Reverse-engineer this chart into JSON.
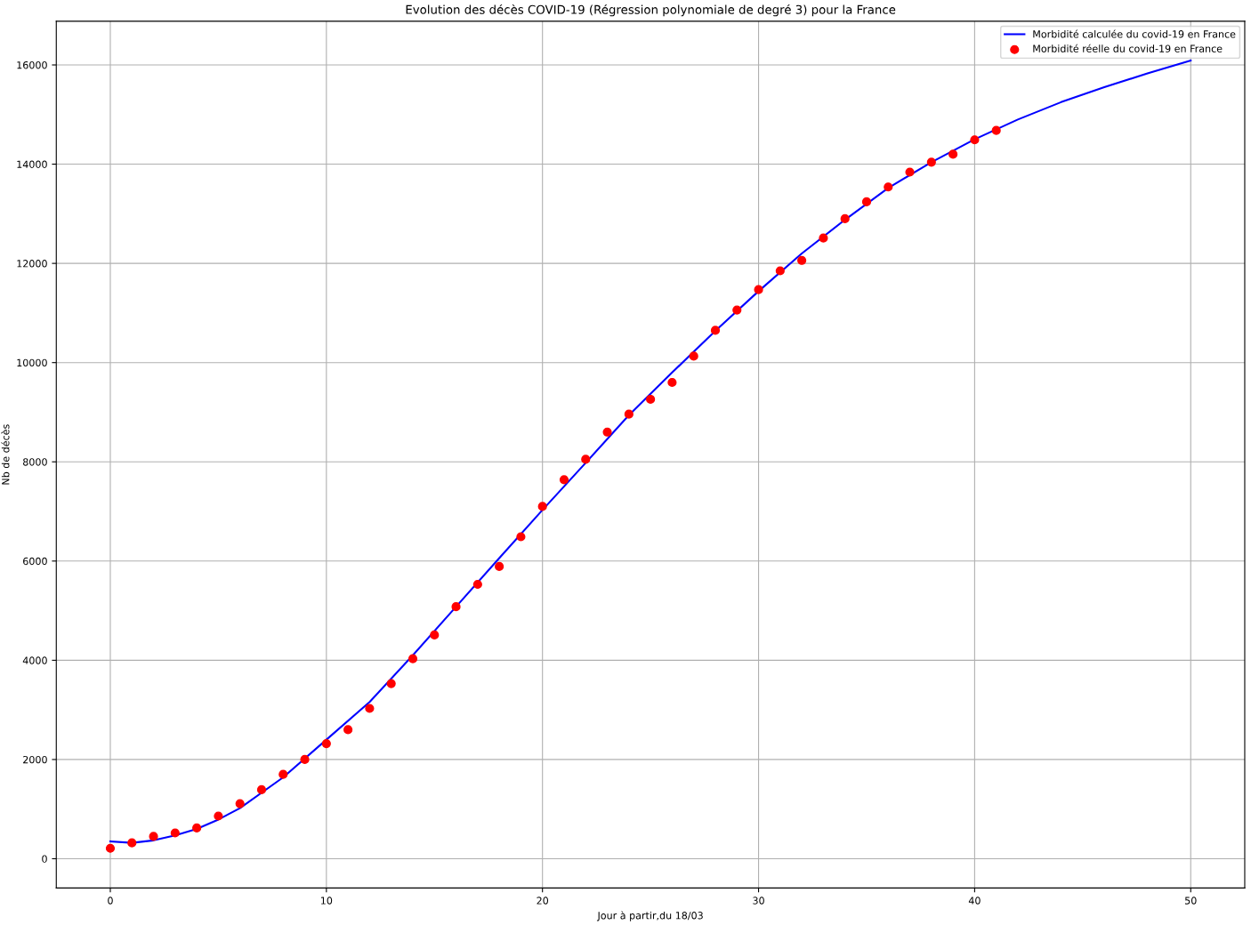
{
  "chart_data": {
    "type": "line",
    "title": "Evolution des décès COVID-19 (Régression polynomiale de degré 3) pour la France",
    "xlabel": "Jour à partir,du 18/03",
    "ylabel": "Nb de décès",
    "xlim": [
      -2.5,
      52.5
    ],
    "xticks": [
      0,
      10,
      20,
      30,
      40,
      50
    ],
    "ylim": [
      -590,
      16880
    ],
    "yticks": [
      0,
      2000,
      4000,
      6000,
      8000,
      10000,
      12000,
      14000,
      16000
    ],
    "grid": true,
    "legend": "top right",
    "series": [
      {
        "name": "Morbidité calculée du covid-19 en France",
        "type": "line",
        "color": "#0000ff",
        "line_style": "solid",
        "x": [
          0,
          1,
          2,
          3,
          4,
          5,
          6,
          8,
          10,
          12,
          14,
          16,
          18,
          20,
          22,
          24,
          26,
          28,
          30,
          32,
          34,
          36,
          38,
          40,
          42,
          44,
          46,
          48,
          50
        ],
        "values": [
          350,
          320,
          370,
          470,
          600,
          790,
          1020,
          1640,
          2400,
          3160,
          4100,
          5080,
          6060,
          7030,
          7980,
          8940,
          9800,
          10640,
          11440,
          12200,
          12880,
          13520,
          14040,
          14500,
          14900,
          15250,
          15550,
          15830,
          16090
        ]
      },
      {
        "name": "Morbidité réelle du covid-19 en France",
        "type": "scatter",
        "color": "#ff0000",
        "marker": "circle",
        "x": [
          0,
          1,
          2,
          3,
          4,
          5,
          6,
          7,
          8,
          9,
          10,
          11,
          12,
          13,
          14,
          15,
          16,
          17,
          18,
          19,
          20,
          21,
          22,
          23,
          24,
          25,
          26,
          27,
          28,
          29,
          30,
          31,
          32,
          33,
          34,
          35,
          36,
          37,
          38,
          39,
          40,
          41
        ],
        "values": [
          210,
          320,
          450,
          520,
          620,
          860,
          1110,
          1390,
          1700,
          2000,
          2320,
          2600,
          3030,
          3530,
          4030,
          4510,
          5080,
          5530,
          5890,
          6490,
          7100,
          7640,
          8050,
          8600,
          8960,
          9260,
          9600,
          10130,
          10650,
          11060,
          11470,
          11850,
          12060,
          12510,
          12900,
          13240,
          13540,
          13840,
          14040,
          14200,
          14490,
          14680
        ]
      }
    ]
  }
}
